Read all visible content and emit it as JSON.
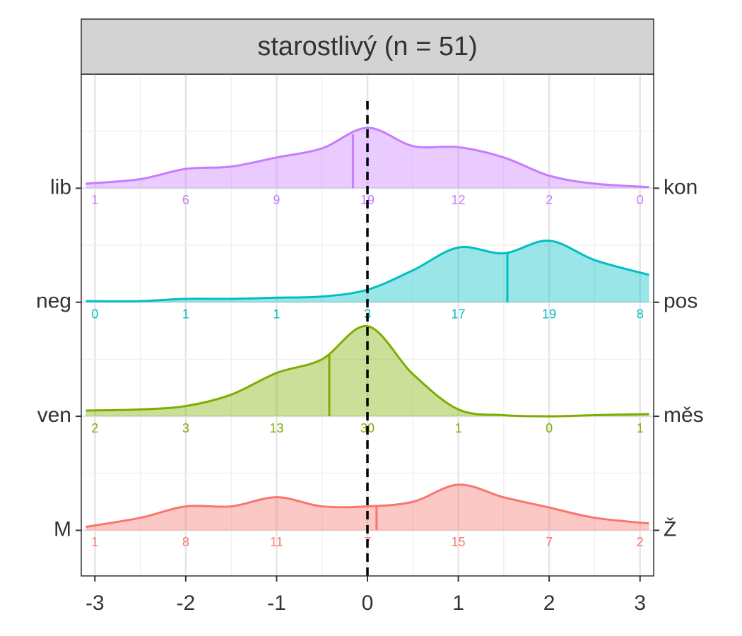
{
  "chart_data": {
    "type": "ridgeline",
    "title": "starostlivý (n = 51)",
    "xlim": [
      -3.15,
      3.15
    ],
    "xticks": [
      -3,
      -2,
      -1,
      0,
      1,
      2,
      3
    ],
    "ylim": [
      0.6,
      5.0
    ],
    "grid": true,
    "reference_x": 0,
    "x": [
      -3.1,
      -2.5,
      -2,
      -1.5,
      -1,
      -0.5,
      0,
      0.5,
      1,
      1.5,
      2,
      2.5,
      3.1
    ],
    "ridges": [
      {
        "left": "lib",
        "right": "kon",
        "color": "#C77CFF",
        "median": -0.16,
        "density": [
          0.04,
          0.08,
          0.17,
          0.19,
          0.27,
          0.35,
          0.53,
          0.37,
          0.36,
          0.27,
          0.11,
          0.04,
          0.01
        ],
        "counts": [
          1,
          6,
          9,
          19,
          12,
          2,
          0
        ]
      },
      {
        "left": "neg",
        "right": "pos",
        "color": "#00BFC4",
        "median": 1.54,
        "density": [
          0.01,
          0.01,
          0.03,
          0.03,
          0.04,
          0.05,
          0.11,
          0.28,
          0.48,
          0.43,
          0.54,
          0.37,
          0.24
        ],
        "counts": [
          0,
          1,
          1,
          3,
          17,
          19,
          8
        ]
      },
      {
        "left": "ven",
        "right": "měs",
        "color": "#7CAE00",
        "median": -0.42,
        "density": [
          0.05,
          0.06,
          0.09,
          0.19,
          0.38,
          0.5,
          0.79,
          0.37,
          0.06,
          0.01,
          0.0,
          0.01,
          0.02
        ],
        "counts": [
          2,
          3,
          13,
          30,
          1,
          0,
          1
        ]
      },
      {
        "left": "M",
        "right": "Ž",
        "color": "#F8766D",
        "median": 0.1,
        "density": [
          0.03,
          0.11,
          0.21,
          0.21,
          0.29,
          0.21,
          0.21,
          0.25,
          0.4,
          0.29,
          0.2,
          0.11,
          0.06
        ],
        "counts": [
          1,
          8,
          11,
          7,
          15,
          7,
          2
        ]
      }
    ]
  }
}
